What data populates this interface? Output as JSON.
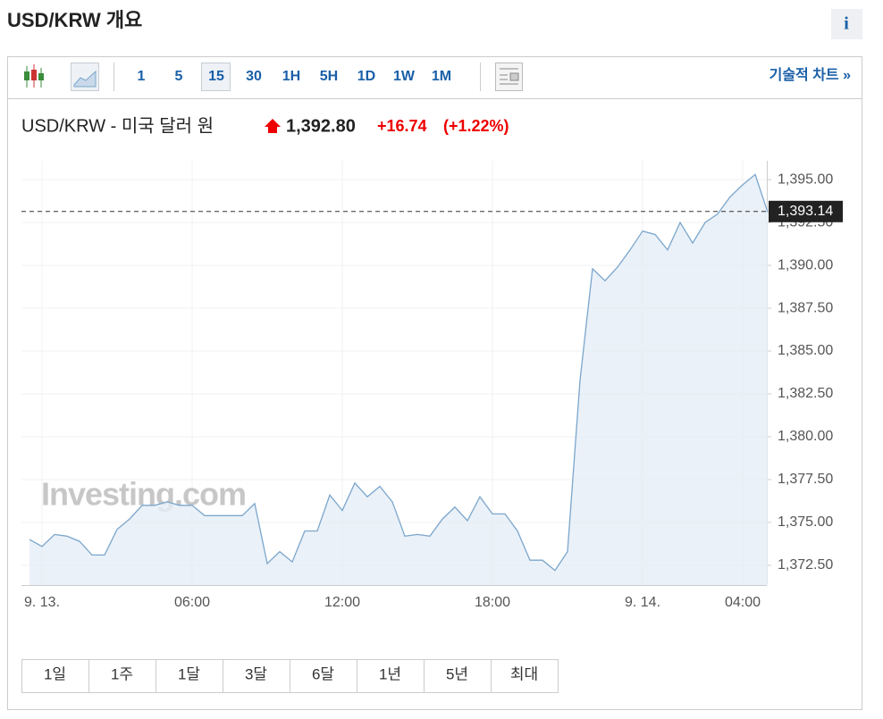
{
  "header": {
    "title": "USD/KRW 개요",
    "info": "i"
  },
  "toolbar": {
    "intervals": [
      "1",
      "5",
      "15",
      "30",
      "1H",
      "5H",
      "1D",
      "1W",
      "1M"
    ],
    "selected_interval": "15",
    "technical_chart_link": "기술적 차트 »"
  },
  "quote": {
    "name": "USD/KRW - 미국 달러 원",
    "price": "1,392.80",
    "change": "+16.74",
    "change_percent": "(+1.22%)"
  },
  "chart_data": {
    "type": "area",
    "categories": [
      null,
      "9. 13.",
      null,
      null,
      null,
      null,
      null,
      null,
      null,
      null,
      null,
      null,
      null,
      "06:00",
      null,
      null,
      null,
      null,
      null,
      null,
      null,
      null,
      null,
      null,
      null,
      "12:00",
      null,
      null,
      null,
      null,
      null,
      null,
      null,
      null,
      null,
      null,
      null,
      "18:00",
      null,
      null,
      null,
      null,
      null,
      null,
      null,
      null,
      null,
      null,
      null,
      "9. 14.",
      null,
      null,
      null,
      null,
      null,
      null,
      null,
      "04:00",
      null,
      null
    ],
    "values": [
      1374.0,
      1373.6,
      1374.3,
      1374.2,
      1373.9,
      1373.1,
      1373.1,
      1374.6,
      1375.2,
      1376.0,
      1376.0,
      1376.2,
      1376.0,
      1376.0,
      1375.4,
      1375.4,
      1375.4,
      1375.4,
      1376.1,
      1372.6,
      1373.3,
      1372.7,
      1374.5,
      1374.5,
      1376.6,
      1375.7,
      1377.3,
      1376.5,
      1377.1,
      1376.2,
      1374.2,
      1374.3,
      1374.2,
      1375.2,
      1375.9,
      1375.1,
      1376.5,
      1375.5,
      1375.5,
      1374.5,
      1372.8,
      1372.8,
      1372.2,
      1373.3,
      1383.3,
      1389.8,
      1389.1,
      1389.9,
      1390.9,
      1392.0,
      1391.8,
      1390.9,
      1392.5,
      1391.3,
      1392.5,
      1393.0,
      1394.0,
      1394.7,
      1395.3,
      1393.1
    ],
    "color": "#7ba6cc",
    "fill_color": "#e5edf6",
    "ylim": [
      1371.35,
      1396.1
    ],
    "yticks": [
      {
        "value": 1372.5,
        "label": "1,372.50"
      },
      {
        "value": 1375,
        "label": "1,375.00"
      },
      {
        "value": 1377.5,
        "label": "1,377.50"
      },
      {
        "value": 1380,
        "label": "1,380.00"
      },
      {
        "value": 1382.5,
        "label": "1,382.50"
      },
      {
        "value": 1385,
        "label": "1,385.00"
      },
      {
        "value": 1387.5,
        "label": "1,387.50"
      },
      {
        "value": 1390,
        "label": "1,390.00"
      },
      {
        "value": 1392.5,
        "label": "1,392.50"
      },
      {
        "value": 1395,
        "label": "1,395.00"
      }
    ],
    "last_price": {
      "value": 1393.14,
      "label": "1,393.14"
    },
    "watermark": "Investing.com",
    "grid": true
  },
  "ranges": [
    "1일",
    "1주",
    "1달",
    "3달",
    "6달",
    "1년",
    "5년",
    "최대"
  ]
}
